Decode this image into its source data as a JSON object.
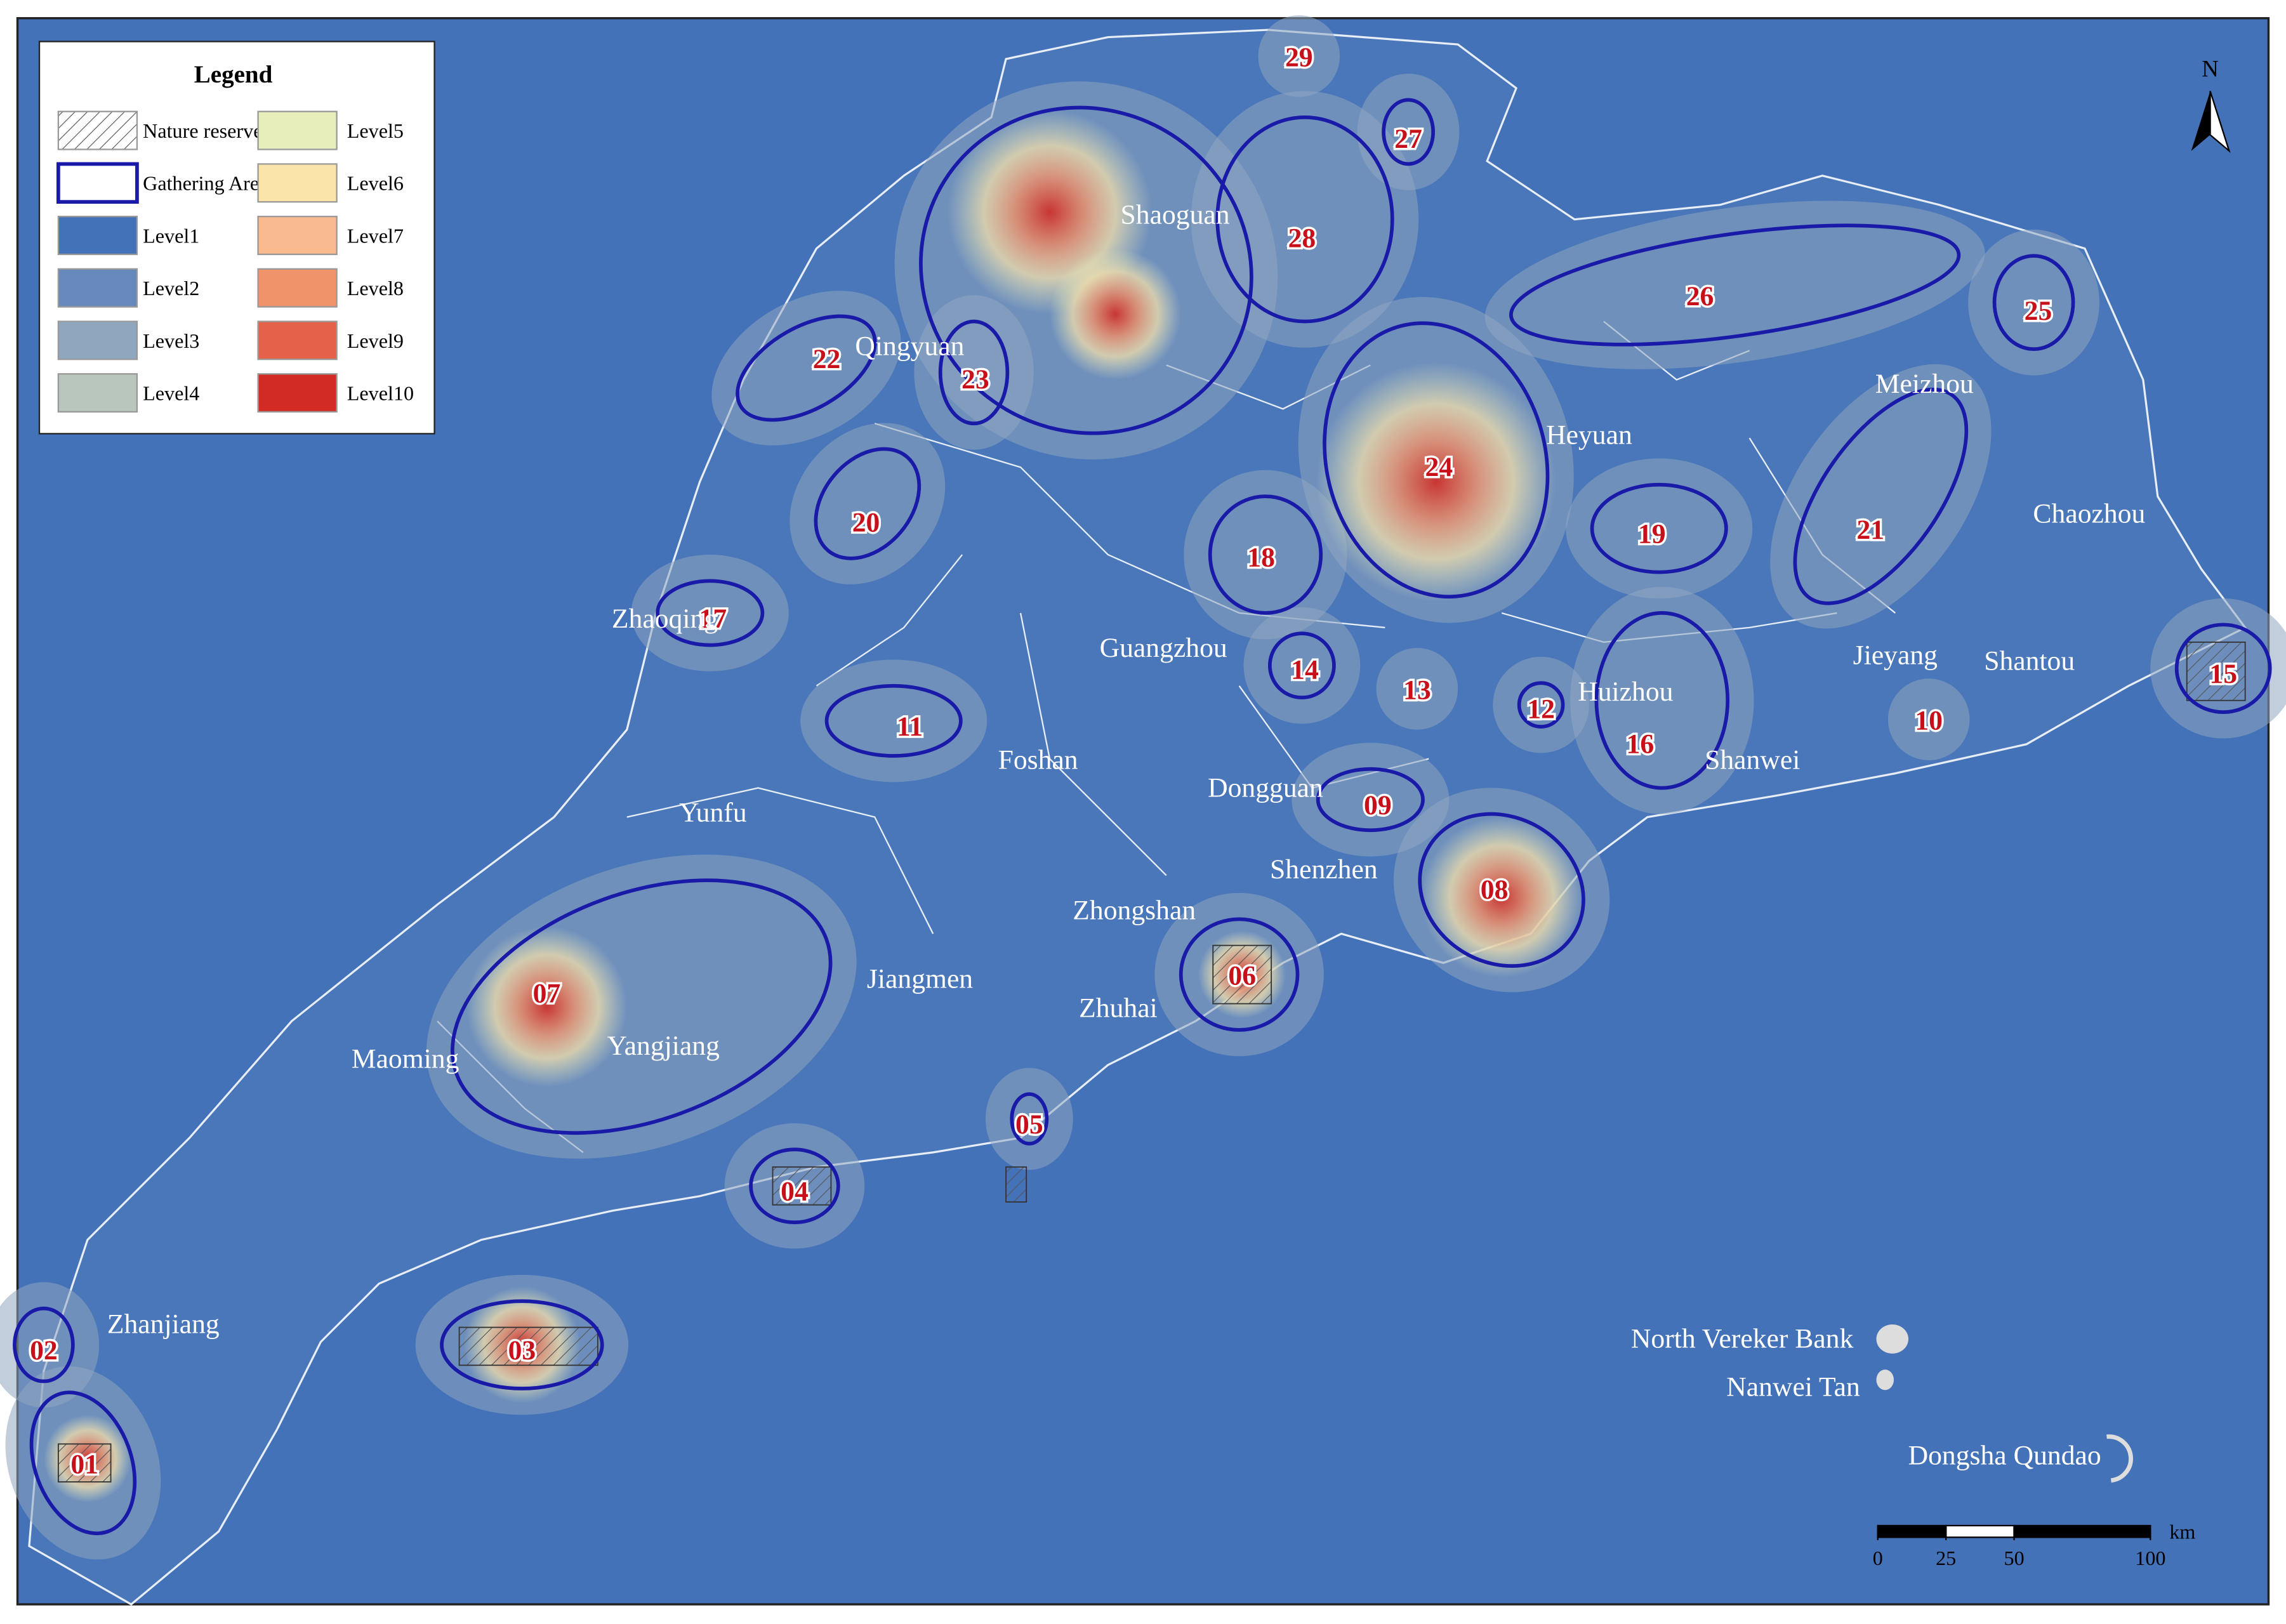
{
  "legend": {
    "title": "Legend",
    "items": [
      {
        "label": "Nature reserves"
      },
      {
        "label": "Gathering Area"
      },
      {
        "label": "Level1",
        "color": "#4472b8"
      },
      {
        "label": "Level2",
        "color": "#6788ba"
      },
      {
        "label": "Level3",
        "color": "#8fa6bf"
      },
      {
        "label": "Level4",
        "color": "#b8c6bd"
      },
      {
        "label": "Level5",
        "color": "#e7edbb"
      },
      {
        "label": "Level6",
        "color": "#fbe4aa"
      },
      {
        "label": "Level7",
        "color": "#f8ba8e"
      },
      {
        "label": "Level8",
        "color": "#f0926a"
      },
      {
        "label": "Level9",
        "color": "#e4624a"
      },
      {
        "label": "Level10",
        "color": "#d22b24"
      }
    ]
  },
  "north": "N",
  "cities": [
    "Shaoguan",
    "Qingyuan",
    "Heyuan",
    "Meizhou",
    "Chaozhou",
    "Zhaoqing",
    "Guangzhou",
    "Jieyang",
    "Shantou",
    "Huizhou",
    "Shanwei",
    "Foshan",
    "Dongguan",
    "Yunfu",
    "Shenzhen",
    "Zhongshan",
    "Jiangmen",
    "Zhuhai",
    "Maoming",
    "Yangjiang",
    "Zhanjiang",
    "North Vereker Bank",
    "Nanwei Tan",
    "Dongsha Qundao"
  ],
  "areas": [
    "01",
    "02",
    "03",
    "04",
    "05",
    "06",
    "07",
    "08",
    "09",
    "10",
    "11",
    "12",
    "13",
    "14",
    "15",
    "16",
    "17",
    "18",
    "19",
    "20",
    "21",
    "22",
    "23",
    "24",
    "25",
    "26",
    "27",
    "28",
    "29"
  ],
  "scale": {
    "unit": "km",
    "ticks": [
      0,
      25,
      50,
      100
    ]
  }
}
